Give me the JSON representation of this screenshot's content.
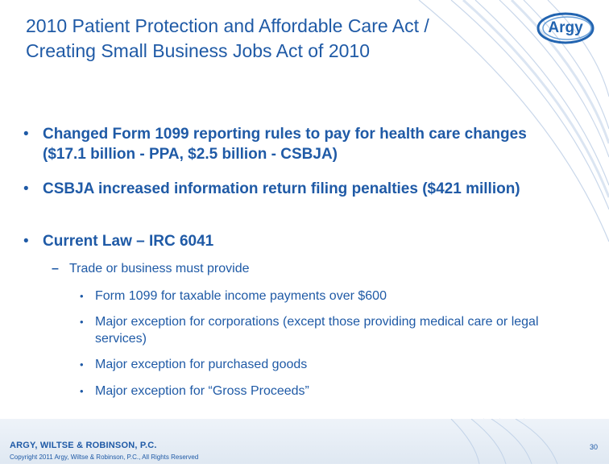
{
  "slide": {
    "title": "2010 Patient Protection and Affordable Care Act / Creating Small Business Jobs Act of 2010",
    "logo_text": "Argy",
    "bullets": [
      {
        "bullet": "•",
        "text": "Changed Form 1099 reporting rules to pay for health care changes ($17.1 billion - PPA, $2.5 billion - CSBJA)"
      },
      {
        "bullet": "•",
        "text": "CSBJA increased information return filing penalties ($421 million)"
      },
      {
        "bullet": "•",
        "text": "Current Law – IRC 6041"
      }
    ],
    "sub_bullet": {
      "bullet": "–",
      "text": "Trade or business must provide"
    },
    "sub_sub_bullets": [
      {
        "bullet": "•",
        "text": "Form 1099 for taxable income payments over $600"
      },
      {
        "bullet": "•",
        "text": "Major exception for corporations (except those providing medical care or legal services)"
      },
      {
        "bullet": "•",
        "text": "Major exception for purchased goods"
      },
      {
        "bullet": "•",
        "text": "Major exception for “Gross Proceeds”"
      }
    ]
  },
  "footer": {
    "firm": "ARGY, WILTSE & ROBINSON, P.C.",
    "copyright": "Copyright 2011 Argy, Wiltse & Robinson, P.C., All Rights Reserved",
    "page_number": "30"
  },
  "colors": {
    "text_blue": "#1f5aa6",
    "arc_blue": "#c9d7ea",
    "footer_bg": "#e4ecf5"
  }
}
